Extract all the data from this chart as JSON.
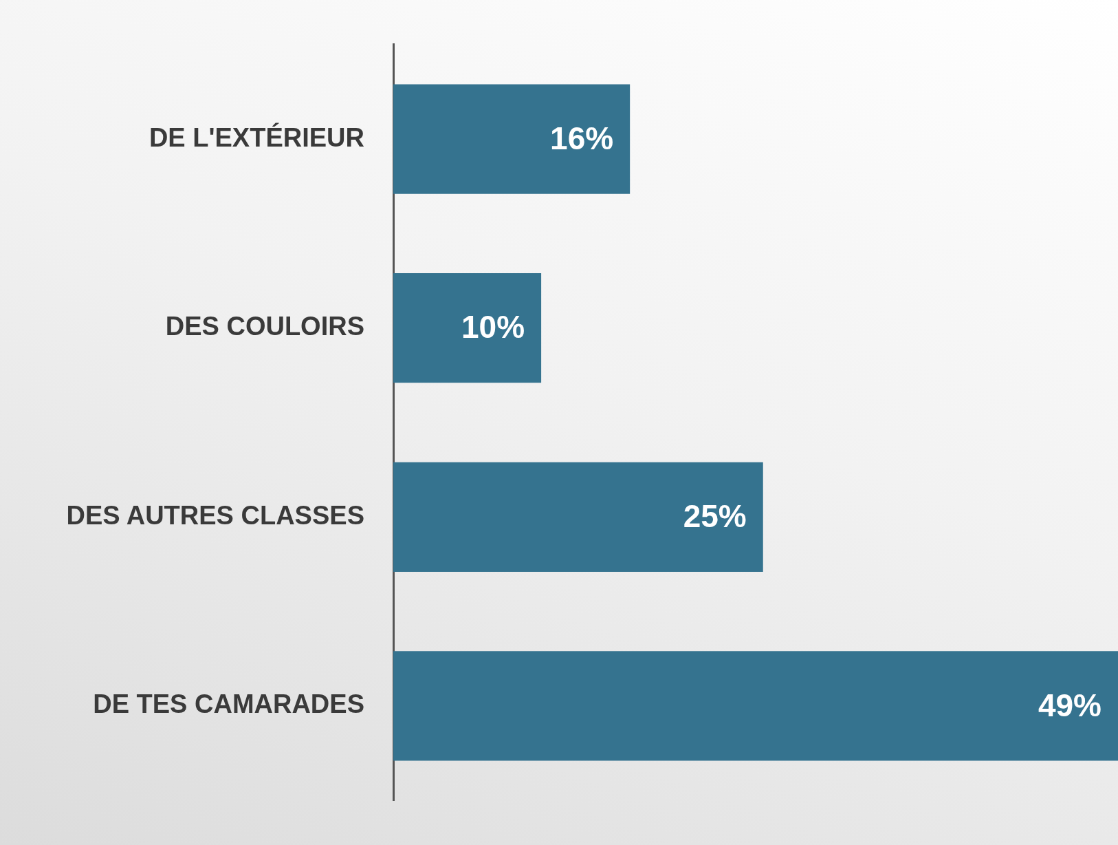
{
  "chart_data": {
    "type": "bar",
    "orientation": "horizontal",
    "categories": [
      "DE L'EXTÉRIEUR",
      "DES COULOIRS",
      "DES AUTRES CLASSES",
      "DE TES CAMARADES"
    ],
    "values": [
      16,
      10,
      25,
      49
    ],
    "color": "#35738f",
    "data_labels": true,
    "value_labels": [
      "16%",
      "10%",
      "25%",
      "49%"
    ],
    "grid": false,
    "legend": false,
    "tick_labels": "y"
  }
}
